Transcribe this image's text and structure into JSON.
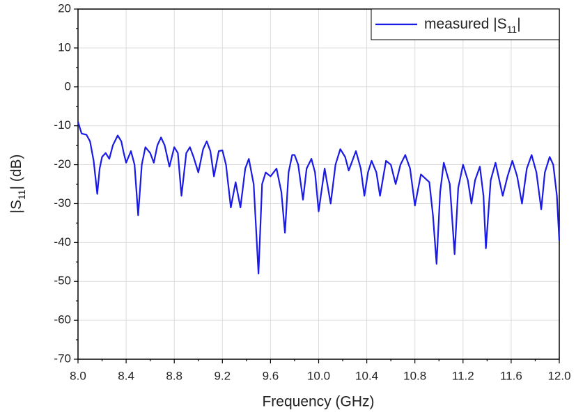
{
  "chart_data": {
    "type": "line",
    "x_label": "Frequency (GHz)",
    "y_label": {
      "text": "|S",
      "sub": "11",
      "tail": "| (dB)"
    },
    "legend_label": {
      "text": "measured |S",
      "sub": "11",
      "tail": "|"
    },
    "legend": "upper right",
    "grid": true,
    "xlim": [
      8.0,
      12.0
    ],
    "ylim": [
      -70,
      20
    ],
    "xticks": [
      {
        "value": 8,
        "label": "8.0"
      },
      8.4,
      8.8,
      9.2,
      9.6,
      {
        "value": 10,
        "label": "10.0"
      },
      10.4,
      10.8,
      11.2,
      11.6,
      {
        "value": 12,
        "label": "12.0"
      }
    ],
    "yticks": [
      -70,
      -60,
      -50,
      -40,
      -30,
      -20,
      -10,
      0,
      10,
      20
    ],
    "series": [
      {
        "name": "measured |S11|",
        "color": "#1a1ae6",
        "x": [
          8.0,
          8.03,
          8.07,
          8.1,
          8.13,
          8.16,
          8.18,
          8.2,
          8.23,
          8.26,
          8.29,
          8.33,
          8.36,
          8.38,
          8.4,
          8.44,
          8.47,
          8.5,
          8.53,
          8.56,
          8.6,
          8.63,
          8.66,
          8.69,
          8.72,
          8.76,
          8.8,
          8.83,
          8.86,
          8.9,
          8.93,
          8.96,
          9.0,
          9.04,
          9.07,
          9.1,
          9.13,
          9.17,
          9.2,
          9.23,
          9.27,
          9.31,
          9.35,
          9.39,
          9.42,
          9.46,
          9.5,
          9.53,
          9.56,
          9.6,
          9.65,
          9.69,
          9.72,
          9.75,
          9.78,
          9.8,
          9.83,
          9.87,
          9.9,
          9.94,
          9.97,
          10.0,
          10.05,
          10.1,
          10.14,
          10.18,
          10.22,
          10.25,
          10.31,
          10.35,
          10.38,
          10.41,
          10.44,
          10.48,
          10.51,
          10.56,
          10.6,
          10.64,
          10.68,
          10.72,
          10.76,
          10.8,
          10.85,
          10.92,
          10.95,
          10.98,
          11.01,
          11.04,
          11.09,
          11.13,
          11.16,
          11.2,
          11.24,
          11.27,
          11.3,
          11.34,
          11.37,
          11.39,
          11.43,
          11.47,
          11.53,
          11.57,
          11.61,
          11.65,
          11.69,
          11.73,
          11.77,
          11.81,
          11.85,
          11.88,
          11.92,
          11.95,
          11.98,
          12.0
        ],
        "values": [
          -9,
          -12,
          -12.3,
          -14,
          -19,
          -27.5,
          -21,
          -18,
          -17,
          -18.5,
          -15,
          -12.5,
          -14,
          -17,
          -19.5,
          -16.5,
          -20,
          -33,
          -20,
          -15.5,
          -17,
          -19.5,
          -15,
          -13,
          -15,
          -20.5,
          -15.5,
          -17,
          -28,
          -17,
          -15.5,
          -18,
          -22,
          -16,
          -14,
          -16.5,
          -23,
          -16.5,
          -16.3,
          -20,
          -31,
          -24.5,
          -31,
          -21,
          -18.5,
          -25,
          -48,
          -25,
          -22,
          -23,
          -21,
          -27,
          -37.5,
          -22,
          -17.5,
          -17.5,
          -20,
          -29,
          -21,
          -18.5,
          -22,
          -32,
          -21,
          -30,
          -20,
          -16,
          -18,
          -21.5,
          -16.5,
          -21,
          -28,
          -22,
          -19,
          -22,
          -28,
          -19,
          -20,
          -25,
          -20,
          -17.5,
          -21,
          -30.5,
          -22.5,
          -24.5,
          -33,
          -45.5,
          -27,
          -19.5,
          -25,
          -43,
          -26,
          -20,
          -24,
          -30,
          -24,
          -20.5,
          -28,
          -41.5,
          -24,
          -19.5,
          -28,
          -23,
          -19,
          -23,
          -30,
          -21,
          -17.5,
          -22,
          -31.5,
          -22,
          -18,
          -20,
          -28,
          -39.5
        ]
      }
    ]
  }
}
